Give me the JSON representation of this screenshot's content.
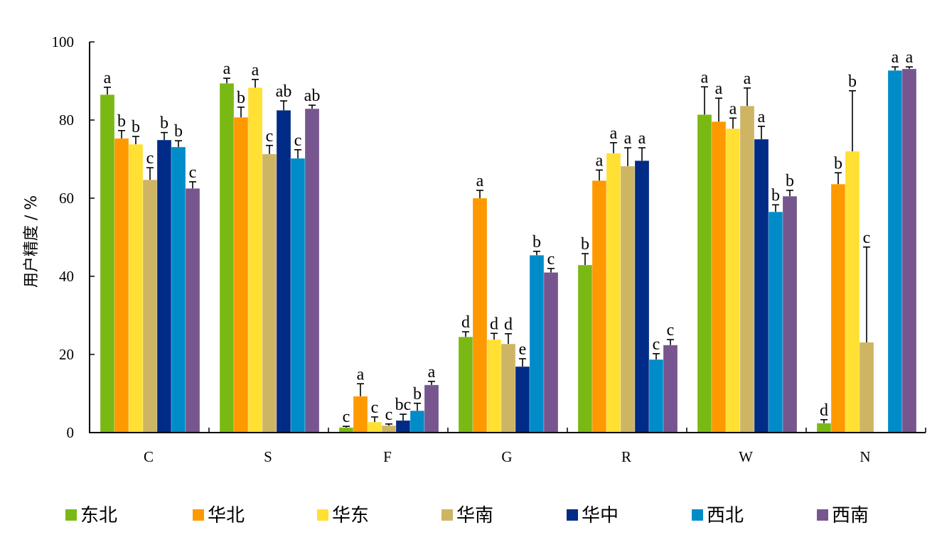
{
  "chart_data": {
    "type": "bar",
    "title": "",
    "xlabel": "",
    "ylabel": "用户精度 / %",
    "ylim": [
      0,
      100
    ],
    "yticks": [
      0,
      20,
      40,
      60,
      80,
      100
    ],
    "ytick_labels": [
      "0",
      "20",
      "40",
      "60",
      "80",
      "100"
    ],
    "grid": false,
    "legend_position": "bottom",
    "categories": [
      "C",
      "S",
      "F",
      "G",
      "R",
      "W",
      "N"
    ],
    "series": [
      {
        "name": "东北",
        "color": "#7AB913",
        "values": [
          86.5,
          89.4,
          1.3,
          24.5,
          42.9,
          81.4,
          2.4
        ],
        "error": [
          1.9,
          1.3,
          0.3,
          1.3,
          2.9,
          7.1,
          0.9
        ],
        "sig": [
          "a",
          "a",
          "c",
          "d",
          "b",
          "a",
          "d"
        ]
      },
      {
        "name": "华北",
        "color": "#FF9900",
        "values": [
          75.3,
          80.7,
          9.3,
          60.0,
          64.5,
          79.6,
          63.6
        ],
        "error": [
          2.0,
          2.6,
          3.2,
          2.0,
          2.7,
          6.0,
          2.9
        ],
        "sig": [
          "b",
          "b",
          "a",
          "a",
          "a",
          "a",
          "b"
        ]
      },
      {
        "name": "华东",
        "color": "#FFE033",
        "values": [
          73.8,
          88.3,
          2.7,
          23.8,
          71.5,
          77.8,
          72.0
        ],
        "error": [
          2.0,
          2.1,
          1.3,
          1.6,
          2.7,
          2.7,
          15.5
        ],
        "sig": [
          "b",
          "a",
          "c",
          "d",
          "a",
          "a",
          "b"
        ]
      },
      {
        "name": "华南",
        "color": "#CDB564",
        "values": [
          64.7,
          71.3,
          1.8,
          22.7,
          68.2,
          83.6,
          23.1
        ],
        "error": [
          3.1,
          2.2,
          0.4,
          2.6,
          4.7,
          4.6,
          24.4
        ],
        "sig": [
          "c",
          "c",
          "c",
          "d",
          "a",
          "a",
          "c"
        ]
      },
      {
        "name": "华中",
        "color": "#002B87",
        "values": [
          74.9,
          82.5,
          3.1,
          16.9,
          69.6,
          75.1,
          null
        ],
        "error": [
          1.9,
          2.4,
          1.6,
          2.0,
          3.3,
          3.3,
          null
        ],
        "sig": [
          "b",
          "ab",
          "bc",
          "e",
          "a",
          "a",
          ""
        ]
      },
      {
        "name": "西北",
        "color": "#008CC8",
        "values": [
          73.1,
          70.2,
          5.6,
          45.4,
          18.7,
          56.5,
          92.7
        ],
        "error": [
          1.6,
          2.2,
          1.9,
          1.0,
          1.5,
          1.8,
          0.9
        ],
        "sig": [
          "b",
          "c",
          "b",
          "b",
          "c",
          "b",
          "a"
        ]
      },
      {
        "name": "西南",
        "color": "#77558E",
        "values": [
          62.5,
          82.9,
          12.2,
          41.0,
          22.4,
          60.5,
          93.1
        ],
        "error": [
          1.7,
          0.9,
          0.9,
          1.0,
          1.4,
          1.5,
          0.5
        ],
        "sig": [
          "c",
          "ab",
          "a",
          "c",
          "c",
          "b",
          "a"
        ]
      }
    ]
  }
}
